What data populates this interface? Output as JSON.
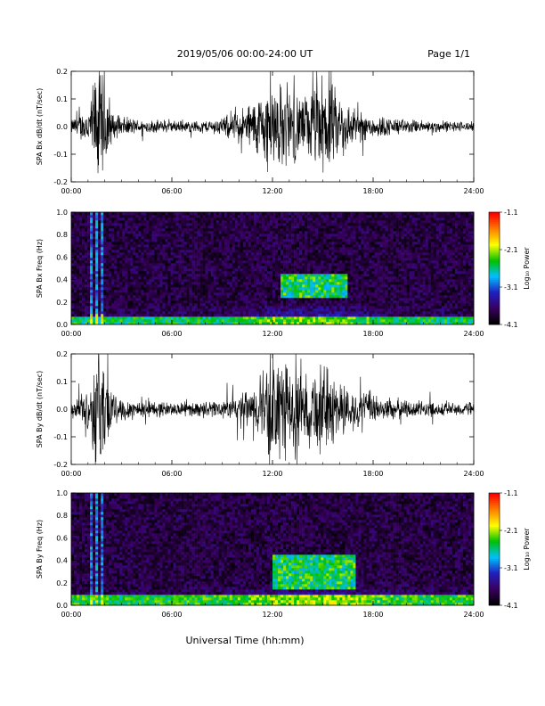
{
  "header": {
    "title": "2019/05/06  00:00-24:00 UT",
    "page": "Page 1/1"
  },
  "footer": {
    "xlabel": "Universal Time (hh:mm)"
  },
  "colors": {
    "trace": "#000000",
    "spectrogram_background": "#1a0033",
    "colormap": [
      "#000000",
      "#3a0060",
      "#2020c0",
      "#00c0ff",
      "#00c000",
      "#ffff00",
      "#ff8000",
      "#ff0000"
    ]
  },
  "chart_data": [
    {
      "type": "line",
      "ylabel": "SPA Bx dB/dt (nT/sec)",
      "xlim": [
        0,
        24
      ],
      "ylim": [
        -0.2,
        0.2
      ],
      "x_ticks": [
        "00:00",
        "06:00",
        "12:00",
        "18:00",
        "24:00"
      ],
      "y_ticks": [
        "-0.2",
        "-0.1",
        "0.0",
        "0.1",
        "0.2"
      ],
      "amplitude_envelope": {
        "hours": [
          0,
          1,
          1.5,
          2,
          2.5,
          4,
          6,
          8,
          9,
          10,
          11,
          12,
          13,
          14,
          15,
          16,
          17,
          18,
          20,
          22,
          24
        ],
        "amplitude": [
          0.03,
          0.08,
          0.25,
          0.25,
          0.05,
          0.03,
          0.025,
          0.025,
          0.04,
          0.07,
          0.12,
          0.2,
          0.16,
          0.13,
          0.22,
          0.14,
          0.07,
          0.05,
          0.03,
          0.025,
          0.02
        ]
      }
    },
    {
      "type": "heatmap",
      "ylabel": "SPA Bx Freq (Hz)",
      "colorbar_label": "Log₁₀ Power",
      "xlim": [
        0,
        24
      ],
      "ylim": [
        0,
        1.0
      ],
      "clim": [
        -4.1,
        -1.1
      ],
      "x_ticks": [
        "00:00",
        "06:00",
        "12:00",
        "18:00",
        "24:00"
      ],
      "y_ticks": [
        "0.0",
        "0.2",
        "0.4",
        "0.6",
        "0.8",
        "1.0"
      ],
      "colorbar_ticks": [
        "-1.1",
        "-2.1",
        "-3.1",
        "-4.1"
      ],
      "features": {
        "background_log_power": -3.8,
        "low_freq_band": {
          "max_hz": 0.08,
          "log_power": -2.6
        },
        "event_hours": [
          1.2,
          1.8
        ],
        "band_activity": {
          "hours": [
            12.5,
            16.5
          ],
          "freq_hz": [
            0.25,
            0.45
          ],
          "log_power": -2.5
        }
      }
    },
    {
      "type": "line",
      "ylabel": "SPA By dB/dt (nT/sec)",
      "xlim": [
        0,
        24
      ],
      "ylim": [
        -0.2,
        0.2
      ],
      "x_ticks": [
        "00:00",
        "06:00",
        "12:00",
        "18:00",
        "24:00"
      ],
      "y_ticks": [
        "-0.2",
        "-0.1",
        "0.0",
        "0.1",
        "0.2"
      ],
      "amplitude_envelope": {
        "hours": [
          0,
          1,
          1.5,
          2,
          2.5,
          4,
          6,
          8,
          9,
          10,
          11,
          12,
          13,
          14,
          15,
          16,
          17,
          18,
          20,
          22,
          24
        ],
        "amplitude": [
          0.03,
          0.09,
          0.25,
          0.25,
          0.06,
          0.04,
          0.03,
          0.03,
          0.04,
          0.06,
          0.1,
          0.25,
          0.18,
          0.15,
          0.2,
          0.12,
          0.08,
          0.06,
          0.04,
          0.03,
          0.03
        ]
      }
    },
    {
      "type": "heatmap",
      "ylabel": "SPA By Freq (Hz)",
      "colorbar_label": "Log₁₀ Power",
      "xlim": [
        0,
        24
      ],
      "ylim": [
        0,
        1.0
      ],
      "clim": [
        -4.1,
        -1.1
      ],
      "x_ticks": [
        "00:00",
        "06:00",
        "12:00",
        "18:00",
        "24:00"
      ],
      "y_ticks": [
        "0.0",
        "0.2",
        "0.4",
        "0.6",
        "0.8",
        "1.0"
      ],
      "colorbar_ticks": [
        "-1.1",
        "-2.1",
        "-3.1",
        "-4.1"
      ],
      "features": {
        "background_log_power": -3.8,
        "low_freq_band": {
          "max_hz": 0.1,
          "log_power": -2.5
        },
        "event_hours": [
          1.2,
          1.8
        ],
        "band_activity": {
          "hours": [
            12.0,
            17.0
          ],
          "freq_hz": [
            0.15,
            0.45
          ],
          "log_power": -2.5
        }
      }
    }
  ]
}
